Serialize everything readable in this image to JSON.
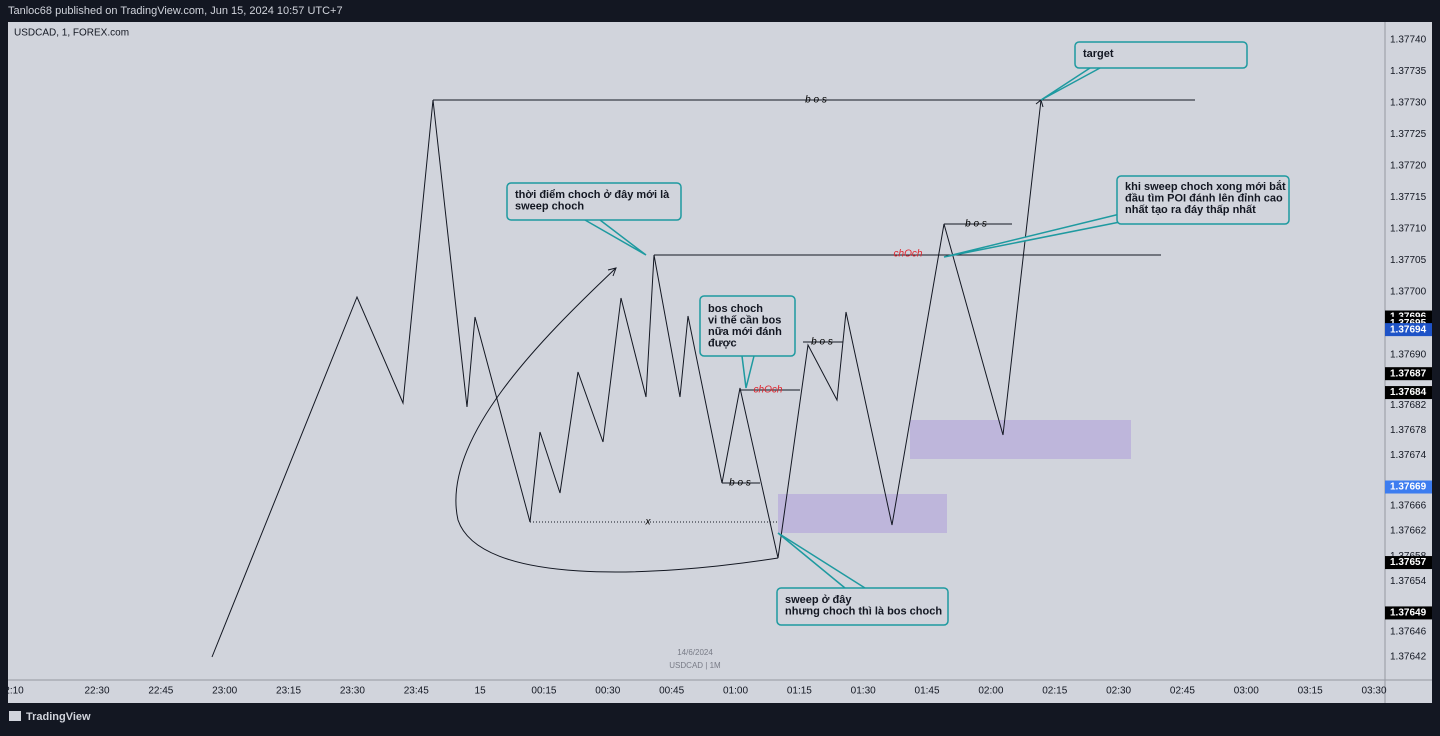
{
  "header": {
    "title": "Tanloc68 published on TradingView.com, Jun 15, 2024 10:57 UTC+7",
    "symbol": "USDCAD, 1, FOREX.com"
  },
  "price_axis": [
    "1.37740",
    "1.37735",
    "1.37730",
    "1.37725",
    "1.37720",
    "1.37715",
    "1.37710",
    "1.37705",
    "1.37700",
    "1.37690",
    "1.37682",
    "1.37678",
    "1.37674",
    "1.37666",
    "1.37662",
    "1.37658",
    "1.37654",
    "1.37646",
    "1.37642"
  ],
  "price_badges": [
    {
      "label": "1.37696",
      "color": "#000000"
    },
    {
      "label": "1.37695",
      "color": "#000000"
    },
    {
      "label": "1.37694",
      "color": "#1e53c7"
    },
    {
      "label": "1.37687",
      "color": "#000000"
    },
    {
      "label": "1.37684",
      "color": "#000000"
    },
    {
      "label": "1.37669",
      "color": "#3d7df0"
    },
    {
      "label": "1.37657",
      "color": "#000000"
    },
    {
      "label": "1.37649",
      "color": "#000000"
    }
  ],
  "time_axis": [
    "2:10",
    "22:30",
    "22:45",
    "23:00",
    "23:15",
    "23:30",
    "23:45",
    "15",
    "00:15",
    "00:30",
    "00:45",
    "01:00",
    "01:15",
    "01:30",
    "01:45",
    "02:00",
    "02:15",
    "02:30",
    "02:45",
    "03:00",
    "03:15",
    "03:30"
  ],
  "labels": {
    "bos_top": "b o s",
    "choch_mid": "chOch",
    "bos_right": "b o s",
    "choch_low": "chOch",
    "bos_mid": "b o s",
    "bos_low": "b o s",
    "x": "x"
  },
  "callouts": {
    "target": [
      "target"
    ],
    "sweep_choch": [
      "thời điểm choch ở đây mới là",
      "sweep choch"
    ],
    "bos_choch": [
      "bos choch",
      "vi thế cần bos",
      "nữa mới đánh",
      "được"
    ],
    "sweep_here": [
      "sweep ở đây",
      "nhưng choch thì là bos choch"
    ],
    "after_sweep": [
      "khi sweep choch xong mới bắt",
      "đầu tìm POI đánh lên đỉnh cao",
      "nhất tạo ra đáy thấp nhất"
    ]
  },
  "watermark": {
    "date": "14/6/2024",
    "symbol": "USDCAD | 1M"
  },
  "footer": {
    "brand": "TradingView"
  }
}
